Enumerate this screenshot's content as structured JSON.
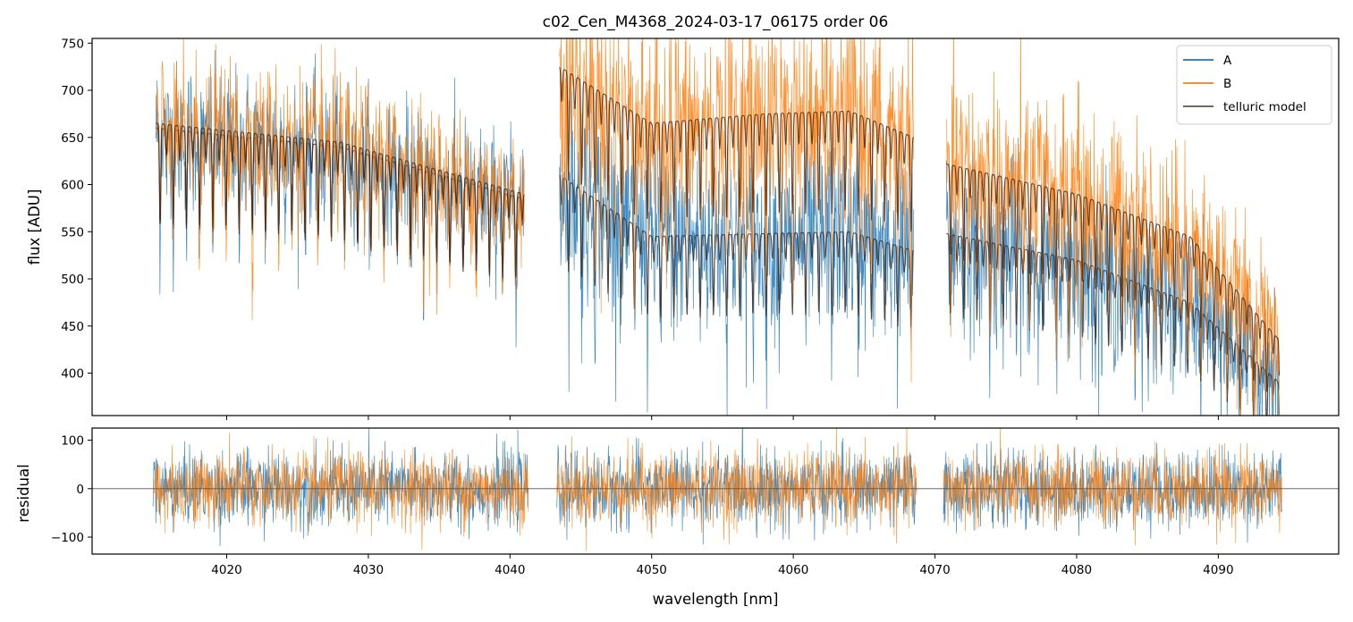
{
  "chart_data": {
    "type": "line",
    "title": "c02_Cen_M4368_2024-03-17_06175  order 06",
    "xlabel": "wavelength [nm]",
    "xlim": [
      4010.5,
      4098.5
    ],
    "x_ticks": [
      "4020",
      "4030",
      "4040",
      "4050",
      "4060",
      "4070",
      "4080",
      "4090"
    ],
    "colors": {
      "A": "#1f77b4",
      "B": "#ff7f0e",
      "model": "#3a2418"
    },
    "legend": {
      "position": "top-right",
      "entries": [
        "A",
        "B",
        "telluric model"
      ]
    },
    "segments": [
      {
        "x_start": 4014.8,
        "x_end": 4041.3
      },
      {
        "x_start": 4043.3,
        "x_end": 4068.7
      },
      {
        "x_start": 4070.6,
        "x_end": 4094.5
      }
    ],
    "top_panel": {
      "ylabel": "flux [ADU]",
      "ylim": [
        355,
        755
      ],
      "y_ticks": [
        "400",
        "450",
        "500",
        "550",
        "600",
        "650",
        "700",
        "750"
      ],
      "series": [
        {
          "name": "A",
          "segments": [
            {
              "x": [
                4015,
                4028,
                4041
              ],
              "y": [
                660,
                640,
                585
              ]
            },
            {
              "x": [
                4043.5,
                4050,
                4058,
                4064,
                4068.5
              ],
              "y": [
                610,
                545,
                548,
                550,
                530
              ]
            },
            {
              "x": [
                4070.8,
                4080,
                4088,
                4094.3
              ],
              "y": [
                548,
                520,
                475,
                390
              ]
            }
          ]
        },
        {
          "name": "B",
          "segments": [
            {
              "x": [
                4015,
                4028,
                4041
              ],
              "y": [
                665,
                645,
                590
              ]
            },
            {
              "x": [
                4043.5,
                4050,
                4058,
                4064,
                4068.5
              ],
              "y": [
                725,
                665,
                675,
                678,
                650
              ]
            },
            {
              "x": [
                4070.8,
                4080,
                4088,
                4094.3
              ],
              "y": [
                622,
                590,
                545,
                435
              ]
            }
          ]
        }
      ]
    },
    "bottom_panel": {
      "ylabel": "residual",
      "ylim": [
        -135,
        125
      ],
      "y_ticks": [
        "100",
        "0",
        "−100"
      ],
      "series": [
        {
          "name": "A",
          "mean": 0,
          "scatter": 38
        },
        {
          "name": "B",
          "mean": 0,
          "scatter": 38
        }
      ]
    }
  }
}
